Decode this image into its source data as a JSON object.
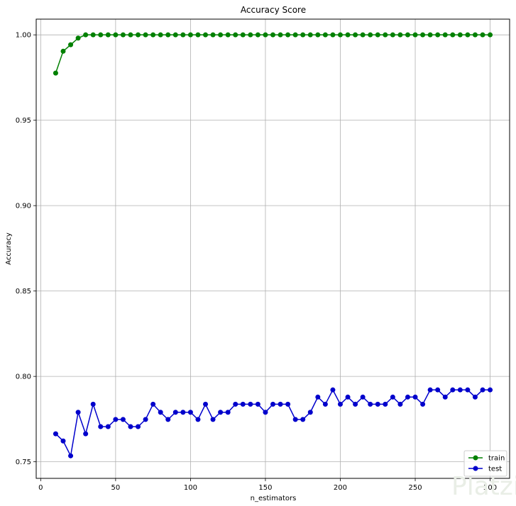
{
  "chart_data": {
    "type": "line",
    "title": "Accuracy Score",
    "xlabel": "n_estimators",
    "ylabel": "Accuracy",
    "xlim": [
      -3,
      313
    ],
    "ylim": [
      0.7403,
      1.0092
    ],
    "xticks": [
      0,
      50,
      100,
      150,
      200,
      250,
      300
    ],
    "yticks": [
      0.75,
      0.8,
      0.85,
      0.9,
      0.95,
      1.0
    ],
    "xtick_labels": [
      "0",
      "50",
      "100",
      "150",
      "200",
      "250",
      "300"
    ],
    "ytick_labels": [
      "0.75",
      "0.80",
      "0.85",
      "0.90",
      "0.95",
      "1.00"
    ],
    "grid": true,
    "legend_position": "lower-right",
    "x": [
      10,
      15,
      20,
      25,
      30,
      35,
      40,
      45,
      50,
      55,
      60,
      65,
      70,
      75,
      80,
      85,
      90,
      95,
      100,
      105,
      110,
      115,
      120,
      125,
      130,
      135,
      140,
      145,
      150,
      155,
      160,
      165,
      170,
      175,
      180,
      185,
      190,
      195,
      200,
      205,
      210,
      215,
      220,
      225,
      230,
      235,
      240,
      245,
      250,
      255,
      260,
      265,
      270,
      275,
      280,
      285,
      290,
      295,
      300
    ],
    "series": [
      {
        "name": "train",
        "color": "#008000",
        "values": [
          0.9776,
          0.9904,
          0.9942,
          0.9981,
          1.0,
          1.0,
          1.0,
          1.0,
          1.0,
          1.0,
          1.0,
          1.0,
          1.0,
          1.0,
          1.0,
          1.0,
          1.0,
          1.0,
          1.0,
          1.0,
          1.0,
          1.0,
          1.0,
          1.0,
          1.0,
          1.0,
          1.0,
          1.0,
          1.0,
          1.0,
          1.0,
          1.0,
          1.0,
          1.0,
          1.0,
          1.0,
          1.0,
          1.0,
          1.0,
          1.0,
          1.0,
          1.0,
          1.0,
          1.0,
          1.0,
          1.0,
          1.0,
          1.0,
          1.0,
          1.0,
          1.0,
          1.0,
          1.0,
          1.0,
          1.0,
          1.0,
          1.0,
          1.0,
          1.0
        ]
      },
      {
        "name": "test",
        "color": "#0000cc",
        "values": [
          0.7664,
          0.7622,
          0.7535,
          0.779,
          0.7664,
          0.7837,
          0.7706,
          0.7706,
          0.7748,
          0.7748,
          0.7706,
          0.7706,
          0.7748,
          0.7837,
          0.779,
          0.7748,
          0.779,
          0.779,
          0.779,
          0.7748,
          0.7837,
          0.7748,
          0.779,
          0.779,
          0.7837,
          0.7837,
          0.7837,
          0.7837,
          0.779,
          0.7837,
          0.7837,
          0.7837,
          0.7748,
          0.7748,
          0.779,
          0.7879,
          0.7837,
          0.7921,
          0.7837,
          0.7879,
          0.7837,
          0.7879,
          0.7837,
          0.7837,
          0.7837,
          0.7879,
          0.7837,
          0.7879,
          0.7879,
          0.7837,
          0.7921,
          0.7921,
          0.7879,
          0.7921,
          0.7921,
          0.7921,
          0.7879,
          0.7921,
          0.7921
        ]
      }
    ]
  },
  "watermark": "Platzi"
}
